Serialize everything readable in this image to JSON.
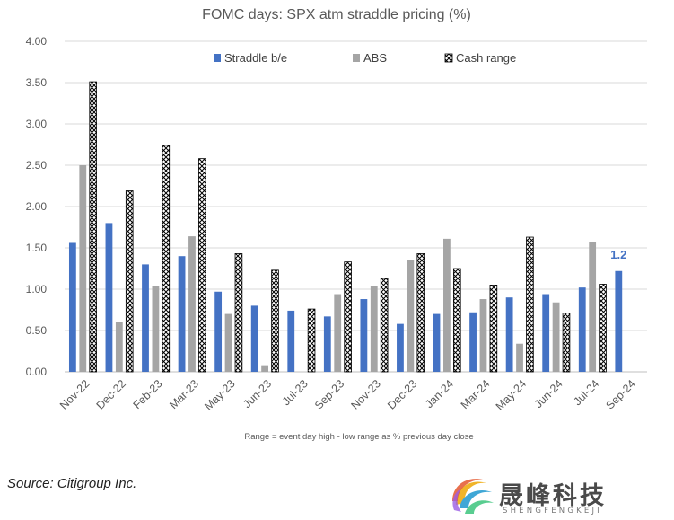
{
  "chart_data": {
    "type": "bar",
    "title": "FOMC days: SPX atm straddle pricing (%)",
    "footnote": "Range = event day high - low range as % previous day close",
    "categories": [
      "Nov-22",
      "Dec-22",
      "Feb-23",
      "Mar-23",
      "May-23",
      "Jun-23",
      "Jul-23",
      "Sep-23",
      "Nov-23",
      "Dec-23",
      "Jan-24",
      "Mar-24",
      "May-24",
      "Jun-24",
      "Jul-24",
      "Sep-24"
    ],
    "series": [
      {
        "name": "Straddle b/e",
        "color": "#4472c4",
        "pattern": "solid",
        "values": [
          1.56,
          1.8,
          1.3,
          1.4,
          0.97,
          0.8,
          0.74,
          0.67,
          0.88,
          0.58,
          0.7,
          0.72,
          0.9,
          0.94,
          1.02,
          1.22
        ]
      },
      {
        "name": "ABS",
        "color": "#a5a5a5",
        "pattern": "solid",
        "values": [
          2.5,
          0.6,
          1.04,
          1.64,
          0.7,
          0.08,
          null,
          0.94,
          1.04,
          1.35,
          1.61,
          0.88,
          0.34,
          0.84,
          1.57,
          null
        ]
      },
      {
        "name": "Cash range",
        "color": "#000000",
        "pattern": "crosshatch",
        "values": [
          3.51,
          2.19,
          2.74,
          2.58,
          1.43,
          1.23,
          0.76,
          1.33,
          1.13,
          1.43,
          1.25,
          1.05,
          1.63,
          0.71,
          1.06,
          null
        ]
      }
    ],
    "yticks": [
      "0.00",
      "0.50",
      "1.00",
      "1.50",
      "2.00",
      "2.50",
      "3.00",
      "3.50",
      "4.00"
    ],
    "ylim": [
      0,
      4
    ],
    "grid": true,
    "legend_position": "top-center",
    "annotation": {
      "category": "Sep-24",
      "series": "Straddle b/e",
      "text": "1.2"
    }
  },
  "source": "Source: Citigroup Inc.",
  "brand": {
    "name": "晟峰科技",
    "subtitle": "SHENGFENGKEJI"
  }
}
